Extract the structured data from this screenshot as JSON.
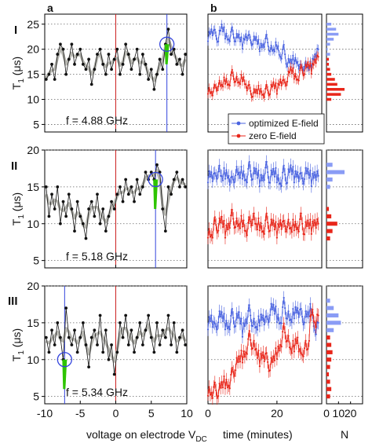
{
  "panel_labels": {
    "a": "a",
    "b": "b"
  },
  "row_labels": [
    "I",
    "II",
    "III"
  ],
  "y_axis_label": "T",
  "y_axis_sub": "1",
  "y_axis_unit": "(μs)",
  "xlabel_a": "voltage on electrode V",
  "xlabel_a_sub": "DC",
  "xlabel_b": "time (minutes)",
  "xlabel_hist": "N",
  "legend": {
    "optimized": "optimized E-field",
    "zero": "zero E-field"
  },
  "colors": {
    "optimized": "#4a63e0",
    "zero": "#e8261a",
    "trace": "#b8b8b2",
    "highlight": "#2ec400",
    "zero_line": "#cc2222",
    "marker_line": "#3344dd",
    "hist_blue": "#8a9cf5"
  },
  "chart_data": [
    {
      "type": "line",
      "panel": "a",
      "row": "I",
      "annotation": "f = 4.88 GHz",
      "xlim": [
        -10,
        10
      ],
      "ylim": [
        3.5,
        27
      ],
      "xticks": [
        -10,
        0,
        10
      ],
      "yticks": [
        5,
        10,
        15,
        20,
        25
      ],
      "marker_voltage": 7.2,
      "x": [
        -9.8,
        -9.4,
        -9.0,
        -8.6,
        -8.2,
        -7.8,
        -7.4,
        -7.0,
        -6.6,
        -6.2,
        -5.8,
        -5.4,
        -5.0,
        -4.6,
        -4.2,
        -3.8,
        -3.4,
        -3.0,
        -2.6,
        -2.2,
        -1.8,
        -1.4,
        -1.0,
        -0.6,
        -0.2,
        0.2,
        0.6,
        1.0,
        1.4,
        1.8,
        2.2,
        2.6,
        3.0,
        3.4,
        3.8,
        4.2,
        4.6,
        5.0,
        5.4,
        5.8,
        6.2,
        6.6,
        7.0,
        7.4,
        7.8,
        8.2,
        8.6,
        9.0,
        9.4,
        9.8
      ],
      "y": [
        14,
        15,
        17,
        14,
        19,
        21,
        20,
        15,
        18,
        21,
        17,
        19,
        20,
        17,
        16,
        18,
        13,
        16,
        19,
        20,
        17,
        15,
        19,
        16,
        18,
        20,
        15,
        17,
        21,
        19,
        16,
        18,
        20,
        15,
        19,
        17,
        14,
        16,
        12,
        15,
        18,
        16,
        21,
        24,
        19,
        20,
        17,
        18,
        15,
        19
      ]
    },
    {
      "type": "line",
      "panel": "a",
      "row": "II",
      "annotation": "f = 5.18 GHz",
      "xlim": [
        -10,
        10
      ],
      "ylim": [
        4,
        20
      ],
      "xticks": [
        -10,
        0,
        10
      ],
      "yticks": [
        5,
        10,
        15,
        20
      ],
      "marker_voltage": 5.6,
      "x": [
        -9.8,
        -9.4,
        -9.0,
        -8.6,
        -8.2,
        -7.8,
        -7.4,
        -7.0,
        -6.6,
        -6.2,
        -5.8,
        -5.4,
        -5.0,
        -4.6,
        -4.2,
        -3.8,
        -3.4,
        -3.0,
        -2.6,
        -2.2,
        -1.8,
        -1.4,
        -1.0,
        -0.6,
        -0.2,
        0.2,
        0.6,
        1.0,
        1.4,
        1.8,
        2.2,
        2.6,
        3.0,
        3.4,
        3.8,
        4.2,
        4.6,
        5.0,
        5.4,
        5.8,
        6.2,
        6.6,
        7.0,
        7.4,
        7.8,
        8.2,
        8.6,
        9.0,
        9.4,
        9.8
      ],
      "y": [
        15,
        11,
        14,
        12,
        15,
        10,
        13,
        11,
        14,
        12,
        9,
        13,
        11,
        10,
        8,
        12,
        13,
        11,
        14,
        10,
        12,
        9,
        11,
        13,
        12,
        14,
        15,
        13,
        16,
        14,
        15,
        13,
        16,
        14,
        15,
        17,
        16,
        17,
        16,
        18,
        17,
        12,
        9,
        15,
        14,
        16,
        17,
        15,
        16,
        15
      ]
    },
    {
      "type": "line",
      "panel": "a",
      "row": "III",
      "annotation": "f = 5.34 GHz",
      "xlim": [
        -10,
        10
      ],
      "ylim": [
        4,
        20
      ],
      "xticks": [
        -10,
        -5,
        0,
        5,
        10
      ],
      "yticks": [
        5,
        10,
        15,
        20
      ],
      "marker_voltage": -7.2,
      "x": [
        -9.8,
        -9.4,
        -9.0,
        -8.6,
        -8.2,
        -7.8,
        -7.4,
        -7.0,
        -6.6,
        -6.2,
        -5.8,
        -5.4,
        -5.0,
        -4.6,
        -4.2,
        -3.8,
        -3.4,
        -3.0,
        -2.6,
        -2.2,
        -1.8,
        -1.4,
        -1.0,
        -0.6,
        -0.2,
        0.2,
        0.6,
        1.0,
        1.4,
        1.8,
        2.2,
        2.6,
        3.0,
        3.4,
        3.8,
        4.2,
        4.6,
        5.0,
        5.4,
        5.8,
        6.2,
        6.6,
        7.0,
        7.4,
        7.8,
        8.2,
        8.6,
        9.0,
        9.4,
        9.8
      ],
      "y": [
        13,
        11,
        14,
        12,
        15,
        13,
        10,
        17,
        13,
        12,
        14,
        11,
        13,
        15,
        12,
        9,
        13,
        14,
        12,
        16,
        11,
        14,
        10,
        12,
        8,
        11,
        15,
        13,
        16,
        12,
        14,
        11,
        13,
        15,
        12,
        14,
        16,
        13,
        11,
        15,
        12,
        14,
        13,
        16,
        12,
        15,
        11,
        13,
        14,
        12
      ]
    },
    {
      "type": "scatter",
      "panel": "b",
      "row": "I",
      "xlim": [
        0,
        33
      ],
      "ylim": [
        3.5,
        27
      ],
      "series": [
        {
          "name": "optimized E-field",
          "x": [
            0,
            1,
            2,
            3,
            4,
            5,
            6,
            7,
            8,
            9,
            10,
            11,
            12,
            13,
            14,
            15,
            16,
            17,
            18,
            19,
            20,
            21,
            22,
            23,
            24,
            25,
            26,
            27,
            28,
            29,
            30,
            31,
            32
          ],
          "y": [
            22.5,
            24,
            23,
            22,
            24.5,
            23,
            22,
            23.5,
            22,
            22.5,
            21,
            23,
            22,
            21.5,
            22,
            20.5,
            21,
            22,
            20,
            19.5,
            21,
            18.5,
            20,
            17,
            17.5,
            18,
            17.5,
            16,
            17,
            16,
            17,
            19,
            20
          ]
        },
        {
          "name": "zero E-field",
          "x": [
            0,
            1,
            2,
            3,
            4,
            5,
            6,
            7,
            8,
            9,
            10,
            11,
            12,
            13,
            14,
            15,
            16,
            17,
            18,
            19,
            20,
            21,
            22,
            23,
            24,
            25,
            26,
            27,
            28,
            29,
            30,
            31,
            32
          ],
          "y": [
            12,
            11.5,
            12,
            13,
            12.5,
            14,
            13,
            15,
            14,
            13,
            14.5,
            13,
            12,
            11,
            11.5,
            12,
            11,
            12,
            11.5,
            13,
            12,
            14,
            13,
            14,
            16,
            15,
            14,
            16,
            15.5,
            17,
            16,
            18,
            18.5
          ]
        }
      ],
      "hist": {
        "xlim": [
          0,
          30
        ],
        "blue_bins": [
          [
            20,
            1
          ],
          [
            21,
            3
          ],
          [
            22,
            6
          ],
          [
            23,
            10
          ],
          [
            24,
            8
          ],
          [
            25,
            4
          ],
          [
            19,
            3
          ],
          [
            18,
            2
          ],
          [
            17,
            2
          ],
          [
            16,
            2
          ]
        ],
        "red_bins": [
          [
            11,
            12
          ],
          [
            12,
            15
          ],
          [
            13,
            9
          ],
          [
            14,
            7
          ],
          [
            15,
            4
          ],
          [
            16,
            3
          ],
          [
            17,
            2
          ],
          [
            10,
            4
          ],
          [
            18,
            2
          ]
        ]
      }
    },
    {
      "type": "scatter",
      "panel": "b",
      "row": "II",
      "xlim": [
        0,
        33
      ],
      "ylim": [
        4,
        20
      ],
      "series": [
        {
          "name": "optimized E-field",
          "x": [
            0,
            1,
            2,
            3,
            4,
            5,
            6,
            7,
            8,
            9,
            10,
            11,
            12,
            13,
            14,
            15,
            16,
            17,
            18,
            19,
            20,
            21,
            22,
            23,
            24,
            25,
            26,
            27,
            28,
            29,
            30,
            31,
            32
          ],
          "y": [
            16.5,
            17,
            16,
            17.5,
            16,
            17,
            16.5,
            15.5,
            17,
            16.5,
            17,
            16,
            17.5,
            16.5,
            17,
            16,
            16.5,
            17.5,
            16,
            17,
            16.5,
            15.5,
            17,
            16,
            17.5,
            16.5,
            17,
            16,
            16.5,
            17,
            16,
            17,
            16.5
          ]
        },
        {
          "name": "zero E-field",
          "x": [
            0,
            1,
            2,
            3,
            4,
            5,
            6,
            7,
            8,
            9,
            10,
            11,
            12,
            13,
            14,
            15,
            16,
            17,
            18,
            19,
            20,
            21,
            22,
            23,
            24,
            25,
            26,
            27,
            28,
            29,
            30,
            31,
            32
          ],
          "y": [
            9,
            8.5,
            10,
            9.5,
            10.5,
            9,
            10,
            11,
            10,
            9.5,
            10.5,
            9,
            10,
            11,
            9.5,
            10,
            9,
            10.5,
            9.5,
            10,
            9,
            10.5,
            9.5,
            10,
            9,
            10,
            9.5,
            10.5,
            9,
            10,
            9.5,
            10.5,
            10
          ]
        }
      ],
      "hist": {
        "xlim": [
          0,
          30
        ],
        "blue_bins": [
          [
            15,
            3
          ],
          [
            16,
            5
          ],
          [
            17,
            15
          ],
          [
            18,
            5
          ]
        ],
        "red_bins": [
          [
            8,
            3
          ],
          [
            9,
            5
          ],
          [
            10,
            9
          ],
          [
            11,
            4
          ],
          [
            12,
            2
          ]
        ]
      }
    },
    {
      "type": "scatter",
      "panel": "b",
      "row": "III",
      "xlim": [
        0,
        33
      ],
      "ylim": [
        4,
        20
      ],
      "xticks": [
        0,
        20
      ],
      "series": [
        {
          "name": "optimized E-field",
          "x": [
            0,
            1,
            2,
            3,
            4,
            5,
            6,
            7,
            8,
            9,
            10,
            11,
            12,
            13,
            14,
            15,
            16,
            17,
            18,
            19,
            20,
            21,
            22,
            23,
            24,
            25,
            26,
            27,
            28,
            29,
            30,
            31,
            32
          ],
          "y": [
            15,
            16,
            14,
            15.5,
            16,
            15,
            14.5,
            16,
            15,
            16,
            14,
            15.5,
            16.5,
            15,
            14,
            15.5,
            16,
            15,
            16.5,
            17,
            16,
            15,
            17.5,
            16,
            15,
            16.5,
            17,
            16,
            15.5,
            16,
            17,
            14,
            15
          ]
        },
        {
          "name": "zero E-field",
          "x": [
            0,
            1,
            2,
            3,
            4,
            5,
            6,
            7,
            8,
            9,
            10,
            11,
            12,
            13,
            14,
            15,
            16,
            17,
            18,
            19,
            20,
            21,
            22,
            23,
            24,
            25,
            26,
            27,
            28,
            29,
            30,
            31,
            32
          ],
          "y": [
            6,
            5.5,
            6,
            5.5,
            6.5,
            7,
            6.5,
            8,
            9,
            10,
            10.5,
            11,
            13,
            12,
            11,
            10,
            11,
            10,
            9,
            10,
            11,
            12,
            14,
            13,
            11,
            12,
            13,
            10,
            12,
            11,
            17,
            15,
            16
          ]
        }
      ],
      "hist": {
        "xlim": [
          0,
          30
        ],
        "xticks": [
          0,
          10,
          20
        ],
        "blue_bins": [
          [
            14,
            6
          ],
          [
            15,
            12
          ],
          [
            16,
            10
          ],
          [
            17,
            6
          ],
          [
            18,
            3
          ]
        ],
        "red_bins": [
          [
            5,
            3
          ],
          [
            6,
            4
          ],
          [
            7,
            3
          ],
          [
            8,
            2
          ],
          [
            9,
            3
          ],
          [
            10,
            4
          ],
          [
            11,
            5
          ],
          [
            12,
            4
          ],
          [
            13,
            3
          ]
        ]
      }
    }
  ]
}
